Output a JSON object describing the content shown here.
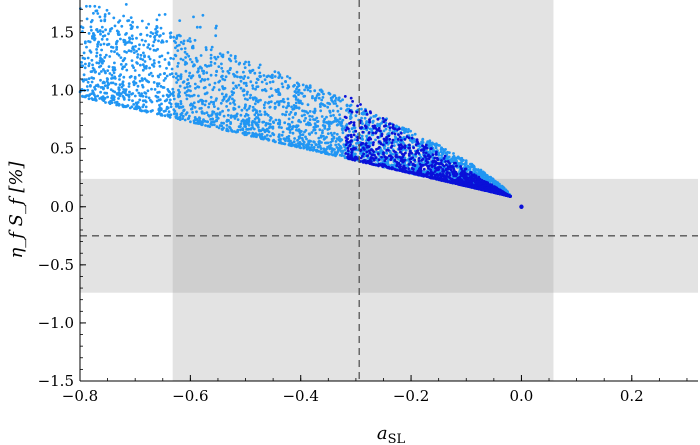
{
  "chart_data": {
    "type": "scatter",
    "title": "",
    "xlabel": "a_SL",
    "xlabel_main": "a",
    "xlabel_sub": "SL",
    "ylabel": "η_f S_f [%]",
    "xlim": [
      -0.8,
      0.32
    ],
    "ylim": [
      -1.5,
      1.78
    ],
    "x_ticks": [
      -0.8,
      -0.6,
      -0.4,
      -0.2,
      0.0,
      0.2
    ],
    "x_tick_labels": [
      "−0.8",
      "−0.6",
      "−0.4",
      "−0.2",
      "0.0",
      "0.2"
    ],
    "y_ticks": [
      -1.5,
      -1.0,
      -0.5,
      0.0,
      0.5,
      1.0,
      1.5
    ],
    "y_tick_labels": [
      "−1.5",
      "−1.0",
      "−0.5",
      "0.0",
      "0.5",
      "1.0",
      "1.5"
    ],
    "bands": [
      {
        "orientation": "vertical",
        "from": -0.632,
        "to": 0.058
      },
      {
        "orientation": "horizontal",
        "from": -0.74,
        "to": 0.24
      }
    ],
    "reference_lines": [
      {
        "orientation": "vertical",
        "value": -0.294
      },
      {
        "orientation": "horizontal",
        "value": -0.25
      }
    ],
    "series": [
      {
        "color": "#2196f3",
        "description_points": [
          [
            -0.79,
            1.3
          ],
          [
            -0.78,
            1.0
          ],
          [
            -0.77,
            1.65
          ],
          [
            -0.75,
            1.48
          ],
          [
            -0.72,
            1.42
          ],
          [
            -0.7,
            1.35
          ],
          [
            -0.68,
            1.3
          ],
          [
            -0.66,
            1.25
          ],
          [
            -0.62,
            1.55
          ],
          [
            -0.6,
            1.76
          ],
          [
            -0.55,
            1.6
          ],
          [
            -0.5,
            1.45
          ],
          [
            -0.45,
            1.35
          ],
          [
            -0.4,
            1.2
          ],
          [
            -0.35,
            1.05
          ],
          [
            -0.3,
            0.95
          ],
          [
            -0.25,
            0.8
          ],
          [
            -0.2,
            0.65
          ],
          [
            -0.15,
            0.5
          ],
          [
            -0.1,
            0.35
          ],
          [
            -0.05,
            0.2
          ],
          [
            -0.03,
            0.12
          ],
          [
            -0.6,
            0.72
          ],
          [
            -0.5,
            0.62
          ],
          [
            -0.4,
            0.5
          ],
          [
            -0.3,
            0.4
          ],
          [
            -0.2,
            0.28
          ],
          [
            -0.1,
            0.15
          ],
          [
            -0.02,
            0.09
          ]
        ]
      },
      {
        "color": "#0a10d8",
        "description_points": [
          [
            -0.3,
            0.3
          ],
          [
            -0.25,
            0.45
          ],
          [
            -0.2,
            0.35
          ],
          [
            -0.15,
            0.25
          ],
          [
            -0.12,
            0.2
          ],
          [
            -0.1,
            0.15
          ],
          [
            -0.08,
            0.12
          ],
          [
            -0.05,
            0.1
          ],
          [
            -0.03,
            0.09
          ],
          [
            0.0,
            0.0
          ]
        ]
      }
    ],
    "grid": false,
    "legend": "none",
    "colors": {
      "band": "#e3e3e3",
      "band_overlap": "#cfcfcf",
      "light_points": "#2196f3",
      "dark_points": "#0a10d8",
      "reference_line": "#555555",
      "frame": "#000000"
    }
  }
}
